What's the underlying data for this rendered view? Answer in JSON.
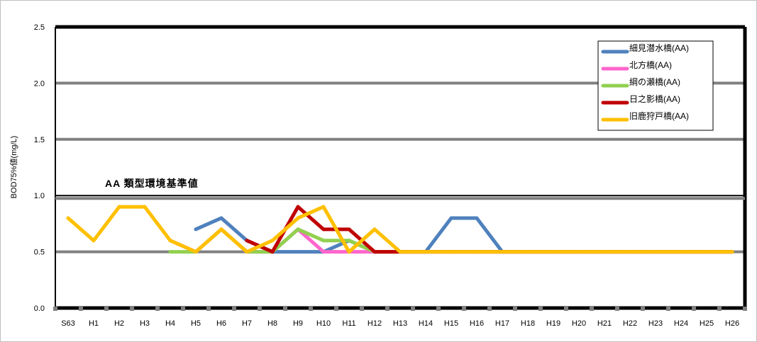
{
  "chart_data": {
    "type": "line",
    "xlabel": "",
    "ylabel": "BOD75%値(mg/L)",
    "ylim": [
      0,
      2.5
    ],
    "yticks": [
      "0.0",
      "0.5",
      "1.0",
      "1.5",
      "2.0",
      "2.5"
    ],
    "categories": [
      "S63",
      "H1",
      "H2",
      "H3",
      "H4",
      "H5",
      "H6",
      "H7",
      "H8",
      "H9",
      "H10",
      "H11",
      "H12",
      "H13",
      "H14",
      "H15",
      "H16",
      "H17",
      "H18",
      "H19",
      "H20",
      "H21",
      "H22",
      "H23",
      "H24",
      "H25",
      "H26"
    ],
    "grid": true,
    "legend_position": "top-right",
    "annotation": {
      "text": "AA 類型環境基準値",
      "value": 1.0
    },
    "series": [
      {
        "name": "細見潜水橋(AA)",
        "color": "#4f81bd",
        "values": [
          null,
          null,
          null,
          null,
          null,
          0.7,
          0.8,
          0.6,
          0.5,
          0.5,
          0.5,
          0.6,
          0.5,
          0.5,
          0.5,
          0.8,
          0.8,
          0.5,
          0.5,
          0.5,
          0.5,
          0.5,
          0.5,
          0.5,
          0.5,
          0.5,
          0.5
        ]
      },
      {
        "name": "北方橋(AA)",
        "color": "#ff66cc",
        "values": [
          null,
          null,
          null,
          null,
          0.6,
          0.5,
          0.7,
          0.5,
          0.5,
          0.7,
          0.5,
          0.5,
          0.5,
          0.5,
          0.5,
          0.5,
          0.5,
          0.5,
          0.5,
          0.5,
          0.5,
          0.5,
          0.5,
          0.5,
          0.5,
          0.5,
          0.5
        ]
      },
      {
        "name": "綱の瀬橋(AA)",
        "color": "#92d050",
        "values": [
          null,
          null,
          null,
          null,
          0.5,
          0.5,
          0.7,
          0.5,
          0.5,
          0.7,
          0.6,
          0.6,
          0.5,
          0.5,
          0.5,
          0.5,
          0.5,
          0.5,
          0.5,
          0.5,
          0.5,
          0.5,
          0.5,
          0.5,
          0.5,
          0.5,
          0.5
        ]
      },
      {
        "name": "日之影橋(AA)",
        "color": "#c00000",
        "values": [
          null,
          null,
          null,
          null,
          null,
          null,
          null,
          0.6,
          0.5,
          0.9,
          0.7,
          0.7,
          0.5,
          0.5,
          0.5,
          0.5,
          0.5,
          0.5,
          0.5,
          0.5,
          0.5,
          0.5,
          0.5,
          0.5,
          0.5,
          0.5,
          0.5
        ]
      },
      {
        "name": "旧鹿狩戸橋(AA)",
        "color": "#ffc000",
        "values": [
          0.8,
          0.6,
          0.9,
          0.9,
          0.6,
          0.5,
          0.7,
          0.5,
          0.6,
          0.8,
          0.9,
          0.5,
          0.7,
          0.5,
          0.5,
          0.5,
          0.5,
          0.5,
          0.5,
          0.5,
          0.5,
          0.5,
          0.5,
          0.5,
          0.5,
          0.5,
          0.5
        ]
      }
    ]
  }
}
